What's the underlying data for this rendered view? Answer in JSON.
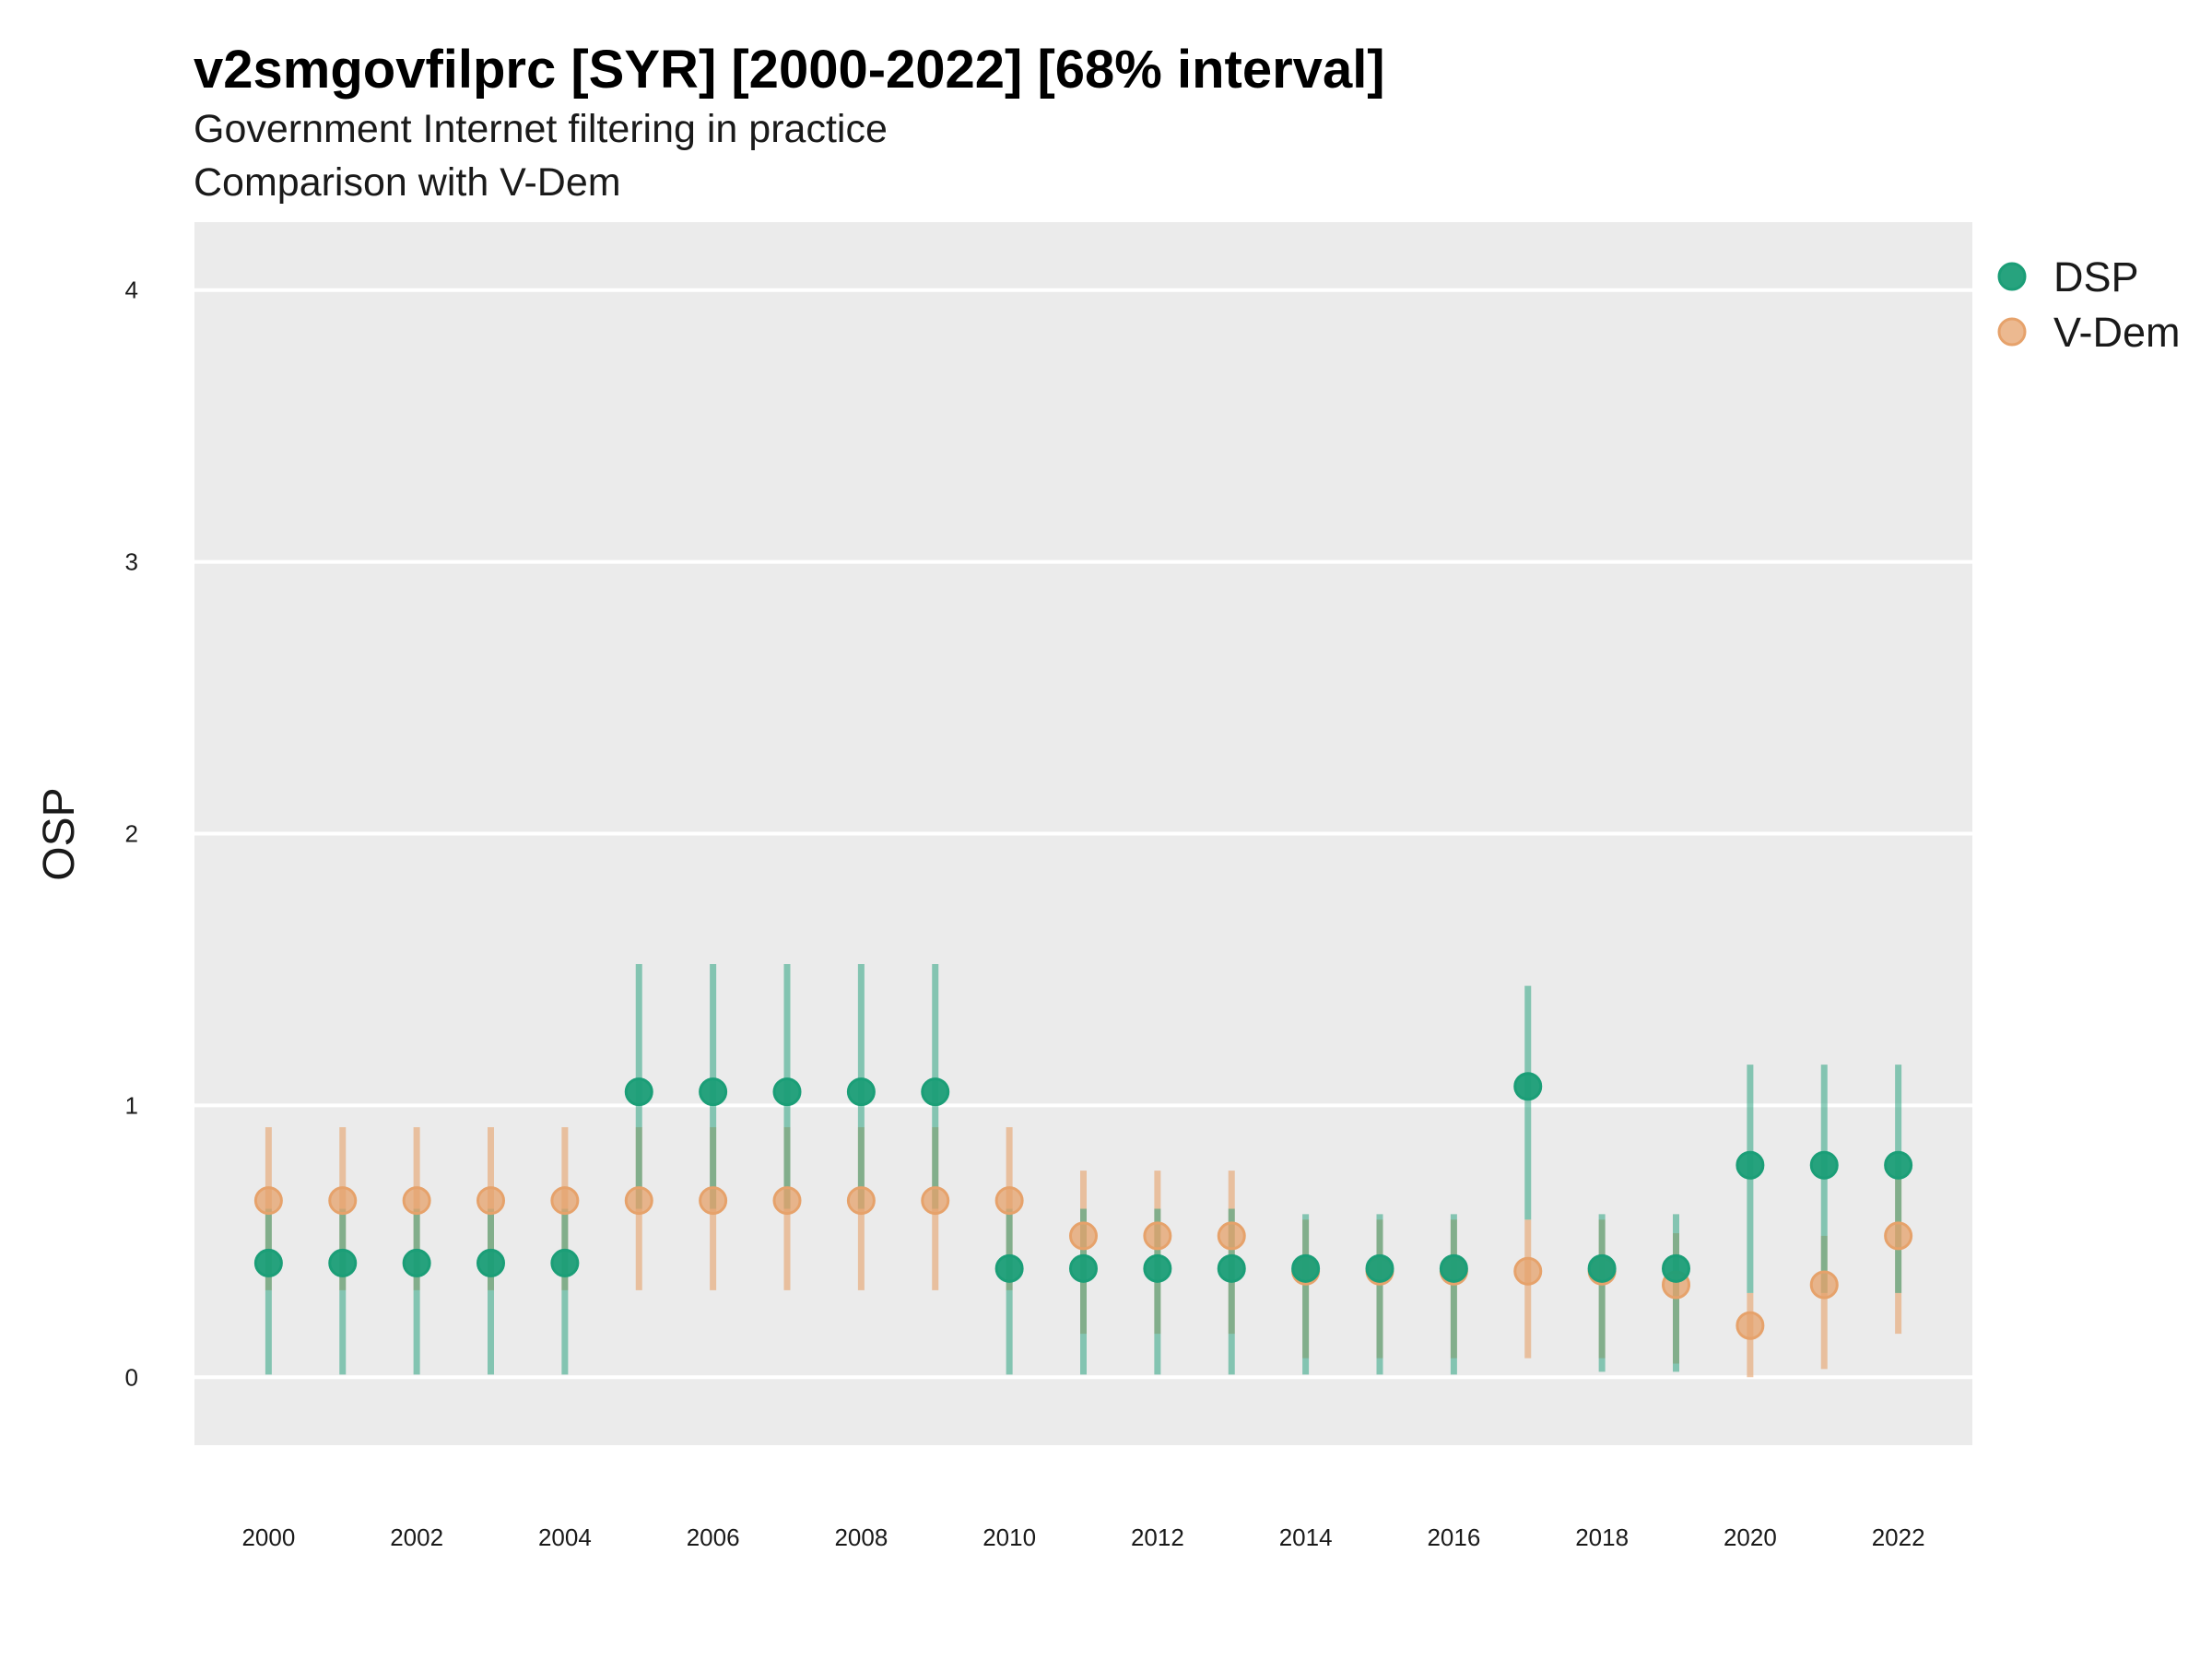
{
  "chart_data": {
    "type": "scatter",
    "title": "v2smgovfilprc [SYR] [2000-2022] [68% interval]",
    "subtitle": "Government Internet filtering in practice",
    "caption": "Comparison with V-Dem",
    "xlabel": "",
    "ylabel": "OSP",
    "ylim": [
      -0.25,
      4.25
    ],
    "xlim": [
      1999,
      2023
    ],
    "y_ticks": [
      "0",
      "1",
      "2",
      "3",
      "4"
    ],
    "x_ticks": [
      "2000",
      "2002",
      "2004",
      "2006",
      "2008",
      "2010",
      "2012",
      "2014",
      "2016",
      "2018",
      "2020",
      "2022"
    ],
    "grid": true,
    "legend_position": "right",
    "colors": {
      "DSP": "#1b9e77",
      "V-Dem": "#e6a26b",
      "panel": "#ebebeb",
      "grid": "#ffffff"
    },
    "x": [
      2000,
      2001,
      2002,
      2003,
      2004,
      2005,
      2006,
      2007,
      2008,
      2009,
      2010,
      2011,
      2012,
      2013,
      2014,
      2015,
      2016,
      2017,
      2018,
      2019,
      2020,
      2021,
      2022
    ],
    "series": [
      {
        "name": "DSP",
        "values": [
          0.42,
          0.42,
          0.42,
          0.42,
          0.42,
          1.05,
          1.05,
          1.05,
          1.05,
          1.05,
          0.4,
          0.4,
          0.4,
          0.4,
          0.4,
          0.4,
          0.4,
          1.07,
          0.4,
          0.4,
          0.78,
          0.78,
          0.78
        ],
        "lower": [
          0.01,
          0.01,
          0.01,
          0.01,
          0.01,
          0.62,
          0.62,
          0.62,
          0.62,
          0.62,
          0.01,
          0.01,
          0.01,
          0.01,
          0.01,
          0.01,
          0.01,
          0.58,
          0.02,
          0.02,
          0.31,
          0.31,
          0.31
        ],
        "upper": [
          0.62,
          0.62,
          0.62,
          0.62,
          0.62,
          1.52,
          1.52,
          1.52,
          1.52,
          1.52,
          0.62,
          0.62,
          0.62,
          0.62,
          0.6,
          0.6,
          0.6,
          1.44,
          0.6,
          0.6,
          1.15,
          1.15,
          1.15
        ]
      },
      {
        "name": "V-Dem",
        "values": [
          0.65,
          0.65,
          0.65,
          0.65,
          0.65,
          0.65,
          0.65,
          0.65,
          0.65,
          0.65,
          0.65,
          0.52,
          0.52,
          0.52,
          0.39,
          0.39,
          0.39,
          0.39,
          0.39,
          0.34,
          0.19,
          0.34,
          0.52
        ],
        "lower": [
          0.32,
          0.32,
          0.32,
          0.32,
          0.32,
          0.32,
          0.32,
          0.32,
          0.32,
          0.32,
          0.32,
          0.16,
          0.16,
          0.16,
          0.07,
          0.07,
          0.07,
          0.07,
          0.07,
          0.05,
          0.0,
          0.03,
          0.16
        ],
        "upper": [
          0.92,
          0.92,
          0.92,
          0.92,
          0.92,
          0.92,
          0.92,
          0.92,
          0.92,
          0.92,
          0.92,
          0.76,
          0.76,
          0.76,
          0.58,
          0.58,
          0.58,
          0.58,
          0.58,
          0.53,
          0.31,
          0.52,
          0.76
        ]
      }
    ]
  }
}
